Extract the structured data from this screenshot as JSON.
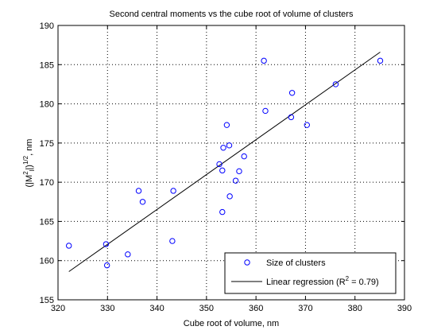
{
  "chart_data": {
    "type": "scatter",
    "title": "Second central moments vs the cube root of volume of clusters",
    "xlabel": "Cube root of volume, nm",
    "ylabel": {
      "prefix": "(|M",
      "sup1": "2",
      "sub": "l",
      "suffix": "|)",
      "sup2": "1/2",
      "unit": ", nm"
    },
    "xlim": [
      320,
      390
    ],
    "ylim": [
      155,
      190
    ],
    "xticks": [
      320,
      330,
      340,
      350,
      360,
      370,
      380,
      390
    ],
    "yticks": [
      155,
      160,
      165,
      170,
      175,
      180,
      185,
      190
    ],
    "grid": true,
    "legend_position": "bottom-right",
    "series": [
      {
        "name": "Size of clusters",
        "kind": "markers",
        "marker": "circle",
        "color": "#0000ff",
        "points": [
          [
            322.2,
            161.9
          ],
          [
            329.7,
            162.1
          ],
          [
            329.9,
            159.4
          ],
          [
            334.1,
            160.8
          ],
          [
            336.3,
            168.9
          ],
          [
            337.1,
            167.5
          ],
          [
            343.1,
            162.5
          ],
          [
            343.3,
            168.9
          ],
          [
            352.6,
            172.3
          ],
          [
            353.2,
            166.2
          ],
          [
            353.2,
            171.5
          ],
          [
            353.4,
            174.4
          ],
          [
            354.1,
            177.3
          ],
          [
            354.6,
            174.7
          ],
          [
            354.7,
            168.2
          ],
          [
            355.9,
            170.2
          ],
          [
            356.6,
            171.4
          ],
          [
            357.6,
            173.3
          ],
          [
            361.6,
            185.5
          ],
          [
            361.9,
            179.1
          ],
          [
            367.1,
            178.3
          ],
          [
            367.3,
            181.4
          ],
          [
            370.3,
            177.3
          ],
          [
            376.1,
            182.5
          ],
          [
            385.1,
            185.5
          ]
        ]
      },
      {
        "name": "Linear regression",
        "legend_label": {
          "prefix": "Linear regression (R",
          "sup": "2",
          "suffix": " = 0.79)"
        },
        "kind": "line",
        "color": "#000000",
        "points": [
          [
            322.2,
            158.6
          ],
          [
            385.1,
            186.6
          ]
        ]
      }
    ]
  }
}
